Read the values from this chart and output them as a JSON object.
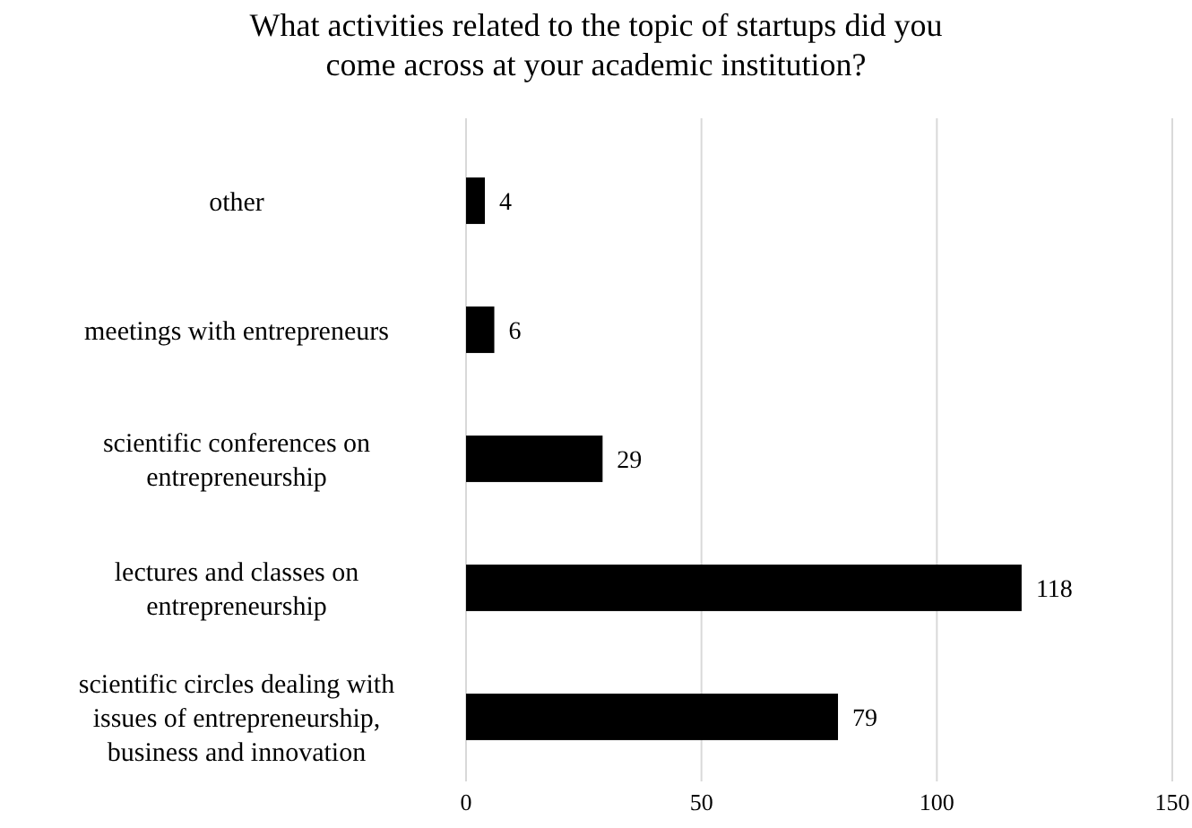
{
  "chart_data": {
    "type": "bar",
    "orientation": "horizontal",
    "title": "What activities related to the topic of startups did you come across at your academic institution?",
    "categories": [
      "other",
      "meetings with entrepreneurs",
      "scientific conferences on entrepreneurship",
      "lectures and classes on entrepreneurship",
      "scientific circles dealing with issues of entrepreneurship, business and innovation"
    ],
    "values": [
      4,
      6,
      29,
      118,
      79
    ],
    "color": "#000000",
    "xlim": [
      0,
      150
    ],
    "xticks": [
      0,
      50,
      100,
      150
    ],
    "grid": "x",
    "data_labels": true
  }
}
